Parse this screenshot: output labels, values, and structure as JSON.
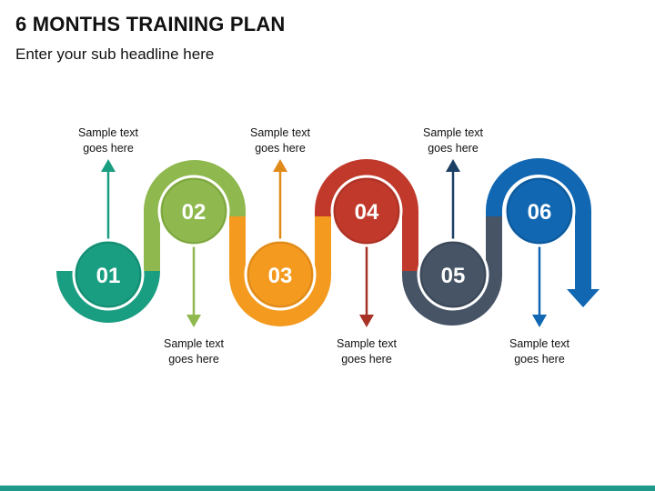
{
  "header": {
    "title": "6 MONTHS TRAINING PLAN",
    "subtitle": "Enter your sub headline here"
  },
  "steps": [
    {
      "number": "01",
      "color": "#1a9e82",
      "label_line1": "Sample text",
      "label_line2": "goes here",
      "arrow": "up"
    },
    {
      "number": "02",
      "color": "#8fb84e",
      "label_line1": "Sample text",
      "label_line2": "goes here",
      "arrow": "down"
    },
    {
      "number": "03",
      "color": "#f39a1f",
      "label_line1": "Sample text",
      "label_line2": "goes here",
      "arrow": "up"
    },
    {
      "number": "04",
      "color": "#c0392b",
      "label_line1": "Sample text",
      "label_line2": "goes here",
      "arrow": "down"
    },
    {
      "number": "05",
      "color": "#465466",
      "label_line1": "Sample text",
      "label_line2": "goes here",
      "arrow": "up"
    },
    {
      "number": "06",
      "color": "#1167b1",
      "label_line1": "Sample text",
      "label_line2": "goes here",
      "arrow": "down"
    }
  ],
  "colors": {
    "circle_text": "#ffffff",
    "circle_ring": "#ffffff",
    "footer_bar": "#1f9a8a"
  }
}
